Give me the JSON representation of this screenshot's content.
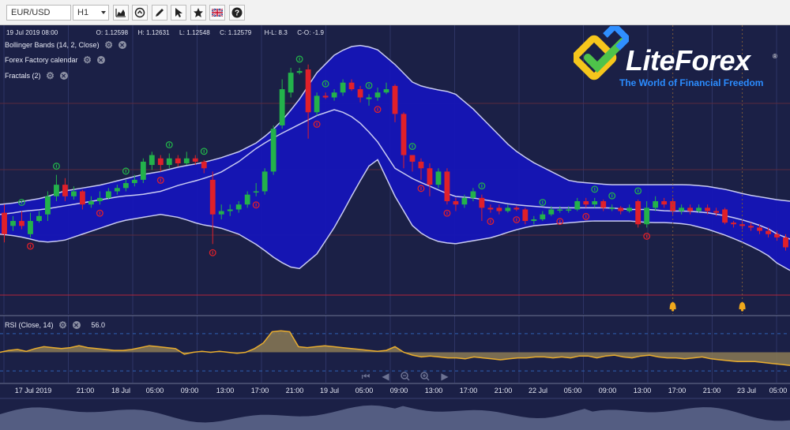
{
  "toolbar": {
    "symbol": "EUR/USD",
    "timeframe": "H1",
    "buttons": [
      {
        "name": "chart-type-icon"
      },
      {
        "name": "indicators-icon"
      },
      {
        "name": "draw-pencil-icon"
      },
      {
        "name": "cursor-icon"
      },
      {
        "name": "favorite-star-icon"
      },
      {
        "name": "language-flag-icon"
      },
      {
        "name": "help-icon"
      }
    ]
  },
  "ohlc": {
    "datetime": "19 Jul 2019 08:00",
    "open": "O: 1.12598",
    "high": "H: 1.12631",
    "low": "L: 1.12548",
    "close": "C: 1.12579",
    "hl": "H-L: 8.3",
    "co": "C-O: -1.9"
  },
  "indicators": [
    {
      "label": "Bollinger Bands (14, 2, Close)"
    },
    {
      "label": "Forex Factory calendar"
    },
    {
      "label": "Fractals (2)"
    }
  ],
  "rsi": {
    "label": "RSI (Close, 14)",
    "value": "56.0"
  },
  "logo": {
    "word": "LiteForex",
    "reg": "®",
    "tagline": "The World of Financial Freedom"
  },
  "xaxis": [
    "17 Jul 2019",
    "21:00",
    "18 Jul",
    "05:00",
    "09:00",
    "13:00",
    "17:00",
    "21:00",
    "19 Jul",
    "05:00",
    "09:00",
    "13:00",
    "17:00",
    "21:00",
    "22 Jul",
    "05:00",
    "09:00",
    "13:00",
    "17:00",
    "21:00",
    "23 Jul",
    "05:00"
  ],
  "colors": {
    "background": "#1b2046",
    "band_fill": "#1515b8",
    "bull": "#23b24b",
    "bear": "#e0202a",
    "rsi_line": "#e9ad2e",
    "event_bell": "#f0a81c"
  },
  "chart_data": {
    "type": "candlestick",
    "symbol": "EUR/USD",
    "timeframe": "H1",
    "candles": [
      [
        0.35,
        0.22,
        0.4,
        0.17
      ],
      [
        0.27,
        0.3,
        0.33,
        0.24
      ],
      [
        0.3,
        0.27,
        0.36,
        0.25
      ],
      [
        0.22,
        0.3,
        0.35,
        0.2
      ],
      [
        0.3,
        0.33,
        0.36,
        0.29
      ],
      [
        0.34,
        0.45,
        0.48,
        0.3
      ],
      [
        0.45,
        0.52,
        0.58,
        0.42
      ],
      [
        0.52,
        0.45,
        0.56,
        0.42
      ],
      [
        0.45,
        0.48,
        0.51,
        0.43
      ],
      [
        0.48,
        0.4,
        0.49,
        0.37
      ],
      [
        0.4,
        0.42,
        0.45,
        0.38
      ],
      [
        0.42,
        0.44,
        0.48,
        0.4
      ],
      [
        0.44,
        0.48,
        0.5,
        0.43
      ],
      [
        0.48,
        0.5,
        0.52,
        0.46
      ],
      [
        0.5,
        0.53,
        0.55,
        0.48
      ],
      [
        0.53,
        0.55,
        0.58,
        0.51
      ],
      [
        0.55,
        0.66,
        0.68,
        0.53
      ],
      [
        0.64,
        0.7,
        0.72,
        0.61
      ],
      [
        0.68,
        0.64,
        0.7,
        0.6
      ],
      [
        0.64,
        0.68,
        0.71,
        0.62
      ],
      [
        0.68,
        0.65,
        0.7,
        0.63
      ],
      [
        0.65,
        0.68,
        0.72,
        0.64
      ],
      [
        0.68,
        0.66,
        0.7,
        0.64
      ],
      [
        0.66,
        0.62,
        0.67,
        0.59
      ],
      [
        0.55,
        0.34,
        0.6,
        0.16
      ],
      [
        0.34,
        0.36,
        0.4,
        0.31
      ],
      [
        0.36,
        0.37,
        0.4,
        0.33
      ],
      [
        0.37,
        0.4,
        0.42,
        0.35
      ],
      [
        0.4,
        0.46,
        0.48,
        0.38
      ],
      [
        0.48,
        0.48,
        0.53,
        0.45
      ],
      [
        0.48,
        0.6,
        0.62,
        0.46
      ],
      [
        0.6,
        0.86,
        0.88,
        0.58
      ],
      [
        0.88,
        1.1,
        1.16,
        0.86
      ],
      [
        1.08,
        1.2,
        1.23,
        1.05
      ],
      [
        1.2,
        1.21,
        1.23,
        1.19
      ],
      [
        1.22,
        0.96,
        1.25,
        0.8
      ],
      [
        0.96,
        1.06,
        1.08,
        0.94
      ],
      [
        1.06,
        1.05,
        1.08,
        1.04
      ],
      [
        1.05,
        1.08,
        1.1,
        1.03
      ],
      [
        1.08,
        1.14,
        1.16,
        1.06
      ],
      [
        1.14,
        1.1,
        1.16,
        1.09
      ],
      [
        1.1,
        1.05,
        1.12,
        1.02
      ],
      [
        1.04,
        1.05,
        1.07,
        1.0
      ],
      [
        1.05,
        1.08,
        1.11,
        1.03
      ],
      [
        1.08,
        1.1,
        1.14,
        1.07
      ],
      [
        1.12,
        0.95,
        1.13,
        0.9
      ],
      [
        0.95,
        0.7,
        0.96,
        0.62
      ],
      [
        0.7,
        0.66,
        0.7,
        0.6
      ],
      [
        0.66,
        0.62,
        0.68,
        0.55
      ],
      [
        0.62,
        0.52,
        0.65,
        0.45
      ],
      [
        0.52,
        0.6,
        0.62,
        0.5
      ],
      [
        0.6,
        0.42,
        0.62,
        0.4
      ],
      [
        0.42,
        0.4,
        0.44,
        0.36
      ],
      [
        0.4,
        0.44,
        0.46,
        0.38
      ],
      [
        0.44,
        0.48,
        0.5,
        0.42
      ],
      [
        0.44,
        0.38,
        0.46,
        0.3
      ],
      [
        0.38,
        0.37,
        0.4,
        0.35
      ],
      [
        0.38,
        0.36,
        0.4,
        0.34
      ],
      [
        0.36,
        0.38,
        0.4,
        0.35
      ],
      [
        0.38,
        0.37,
        0.39,
        0.36
      ],
      [
        0.37,
        0.3,
        0.38,
        0.28
      ],
      [
        0.3,
        0.31,
        0.33,
        0.28
      ],
      [
        0.31,
        0.34,
        0.36,
        0.3
      ],
      [
        0.34,
        0.37,
        0.39,
        0.33
      ],
      [
        0.37,
        0.37,
        0.39,
        0.35
      ],
      [
        0.37,
        0.37,
        0.39,
        0.35
      ],
      [
        0.37,
        0.42,
        0.44,
        0.36
      ],
      [
        0.42,
        0.4,
        0.44,
        0.38
      ],
      [
        0.4,
        0.42,
        0.44,
        0.38
      ],
      [
        0.42,
        0.38,
        0.43,
        0.36
      ],
      [
        0.38,
        0.38,
        0.4,
        0.36
      ],
      [
        0.38,
        0.36,
        0.39,
        0.34
      ],
      [
        0.36,
        0.38,
        0.4,
        0.35
      ],
      [
        0.42,
        0.28,
        0.43,
        0.26
      ],
      [
        0.28,
        0.38,
        0.42,
        0.26
      ],
      [
        0.38,
        0.42,
        0.45,
        0.36
      ],
      [
        0.42,
        0.4,
        0.44,
        0.38
      ],
      [
        0.42,
        0.36,
        0.44,
        0.34
      ],
      [
        0.36,
        0.38,
        0.4,
        0.34
      ],
      [
        0.38,
        0.36,
        0.4,
        0.34
      ],
      [
        0.36,
        0.38,
        0.4,
        0.35
      ],
      [
        0.38,
        0.36,
        0.4,
        0.34
      ],
      [
        0.36,
        0.35,
        0.38,
        0.33
      ],
      [
        0.37,
        0.29,
        0.38,
        0.28
      ],
      [
        0.29,
        0.28,
        0.3,
        0.26
      ],
      [
        0.28,
        0.27,
        0.3,
        0.25
      ],
      [
        0.27,
        0.26,
        0.29,
        0.24
      ],
      [
        0.26,
        0.24,
        0.28,
        0.22
      ],
      [
        0.24,
        0.22,
        0.26,
        0.2
      ],
      [
        0.22,
        0.2,
        0.24,
        0.18
      ],
      [
        0.2,
        0.14,
        0.22,
        0.12
      ]
    ],
    "ylim": [
      -0.15,
      1.45
    ],
    "bollinger_upper": [
      0.4,
      0.42,
      0.44,
      0.48,
      0.5,
      0.52,
      0.55,
      0.58,
      0.6,
      0.63,
      0.65,
      0.68,
      0.72,
      0.78,
      0.88,
      1.02,
      1.2,
      1.32,
      1.37,
      1.35,
      1.25,
      1.13,
      1.1,
      1.08,
      0.98,
      0.86,
      0.74,
      0.66,
      0.6,
      0.54,
      0.53,
      0.52,
      0.52,
      0.52,
      0.52,
      0.52,
      0.51,
      0.49,
      0.46,
      0.44,
      0.42
    ],
    "bollinger_middle": [
      0.34,
      0.36,
      0.37,
      0.39,
      0.41,
      0.43,
      0.45,
      0.46,
      0.48,
      0.52,
      0.55,
      0.59,
      0.66,
      0.75,
      0.82,
      0.88,
      0.94,
      0.98,
      0.92,
      0.8,
      0.62,
      0.55,
      0.5,
      0.45,
      0.44,
      0.42,
      0.4,
      0.39,
      0.38,
      0.38,
      0.38,
      0.38,
      0.37,
      0.37,
      0.36,
      0.36,
      0.35,
      0.33,
      0.3,
      0.26,
      0.19
    ],
    "bollinger_lower": [
      0.22,
      0.2,
      0.17,
      0.18,
      0.22,
      0.26,
      0.3,
      0.32,
      0.34,
      0.32,
      0.28,
      0.26,
      0.22,
      0.15,
      0.06,
      0.0,
      0.1,
      0.28,
      0.5,
      0.7,
      0.45,
      0.25,
      0.18,
      0.16,
      0.18,
      0.2,
      0.24,
      0.27,
      0.28,
      0.29,
      0.3,
      0.3,
      0.3,
      0.29,
      0.29,
      0.28,
      0.25,
      0.21,
      0.16,
      0.1,
      0.0
    ],
    "fractals_up": [
      2,
      6,
      14,
      19,
      23,
      34,
      37,
      42,
      47,
      55,
      62,
      68,
      70,
      73
    ],
    "fractals_down": [
      3,
      11,
      18,
      24,
      29,
      36,
      43,
      48,
      51,
      56,
      59,
      64,
      67,
      74
    ],
    "rsi": [
      50,
      52,
      53,
      51,
      54,
      56,
      55,
      54,
      55,
      57,
      55,
      54,
      53,
      52,
      52,
      53,
      55,
      57,
      56,
      55,
      54,
      48,
      50,
      51,
      50,
      51,
      50,
      49,
      50,
      54,
      60,
      72,
      73,
      72,
      56,
      55,
      56,
      57,
      56,
      55,
      54,
      53,
      52,
      51,
      52,
      56,
      50,
      47,
      45,
      46,
      45,
      44,
      44,
      43,
      45,
      44,
      43,
      42,
      43,
      44,
      44,
      45,
      45,
      44,
      45,
      44,
      46,
      46,
      44,
      46,
      47,
      45,
      44,
      46,
      47,
      45,
      44,
      44,
      43,
      44,
      45,
      43,
      42,
      41,
      40,
      40,
      40,
      39,
      38,
      37,
      36
    ],
    "rsi_levels": [
      70,
      30
    ],
    "event_markers_at_candles": [
      77,
      85
    ]
  }
}
